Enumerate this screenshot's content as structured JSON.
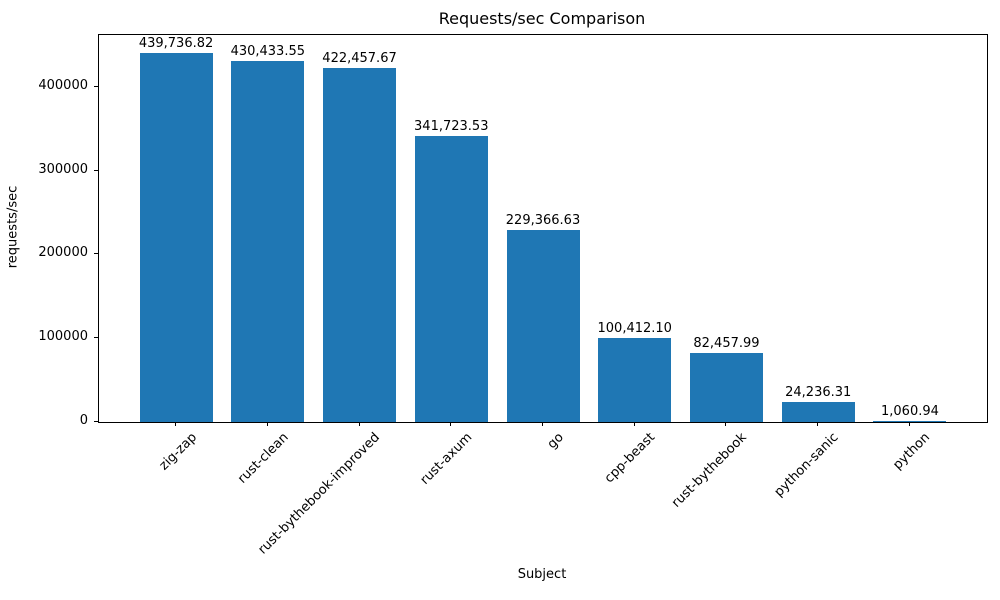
{
  "chart_data": {
    "type": "bar",
    "title": "Requests/sec Comparison",
    "xlabel": "Subject",
    "ylabel": "requests/sec",
    "categories": [
      "zig-zap",
      "rust-clean",
      "rust-bythebook-improved",
      "rust-axum",
      "go",
      "cpp-beast",
      "rust-bythebook",
      "python-sanic",
      "python"
    ],
    "values": [
      439736.82,
      430433.55,
      422457.67,
      341723.53,
      229366.63,
      100412.1,
      82457.99,
      24236.31,
      1060.94
    ],
    "value_labels": [
      "439,736.82",
      "430,433.55",
      "422,457.67",
      "341,723.53",
      "229,366.63",
      "100,412.10",
      "82,457.99",
      "24,236.31",
      "1,060.94"
    ],
    "yticks": [
      0,
      100000,
      200000,
      300000,
      400000
    ],
    "ytick_labels": [
      "0",
      "100000",
      "200000",
      "300000",
      "400000"
    ],
    "ylim": [
      0,
      461723.66
    ],
    "xtick_label_rotation_deg": 45,
    "bar_color": "#1f77b4",
    "grid": false,
    "legend": false,
    "background_color": "#ffffff",
    "spine_color": "#000000",
    "text_color": "#000000"
  }
}
